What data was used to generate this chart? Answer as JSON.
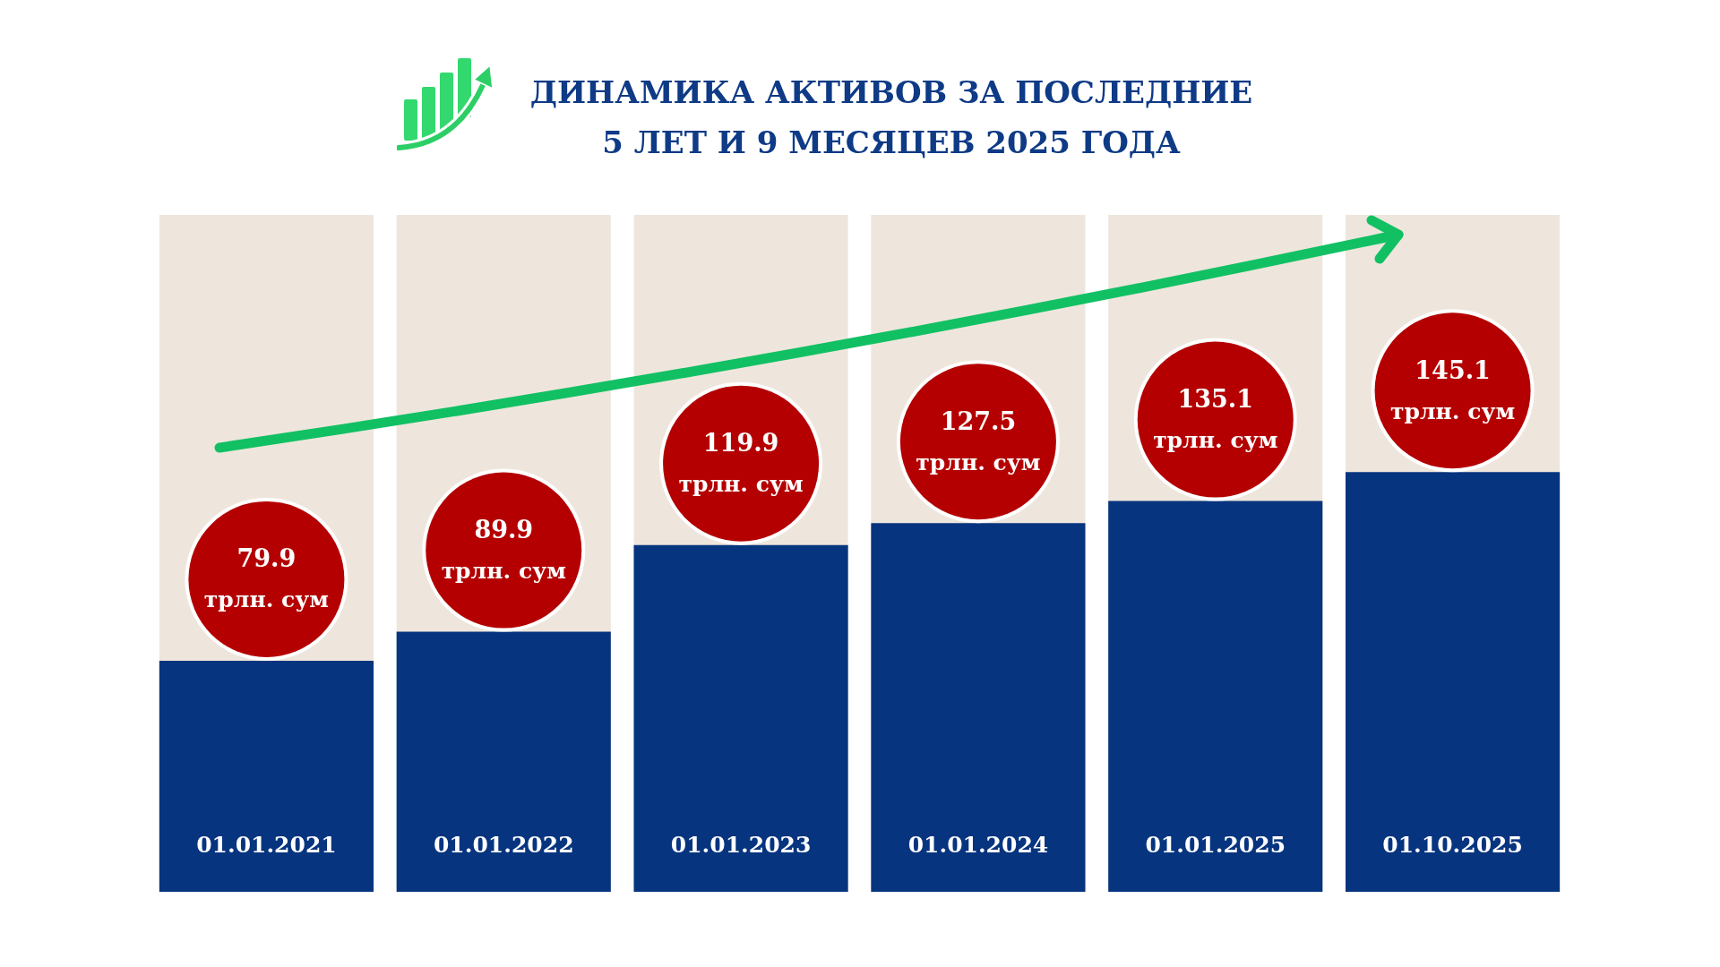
{
  "chart_data": {
    "type": "bar",
    "title": "ДИНАМИКА АКТИВОВ ЗА ПОСЛЕДНИЕ 5 ЛЕТ И 9 МЕСЯЦЕВ 2025 ГОДА",
    "categories": [
      "01.01.2021",
      "01.01.2022",
      "01.01.2023",
      "01.01.2024",
      "01.01.2025",
      "01.10.2025"
    ],
    "values": [
      79.9,
      89.9,
      119.9,
      127.5,
      135.1,
      145.1
    ],
    "value_labels": [
      "79.9 трлн. сум",
      "89.9 трлн. сум",
      "119.9 трлн. сум",
      "127.5 трлн. сум",
      "135.1 трлн. сум",
      "145.1 трлн. сум"
    ],
    "color": "#06347f"
  }
}
